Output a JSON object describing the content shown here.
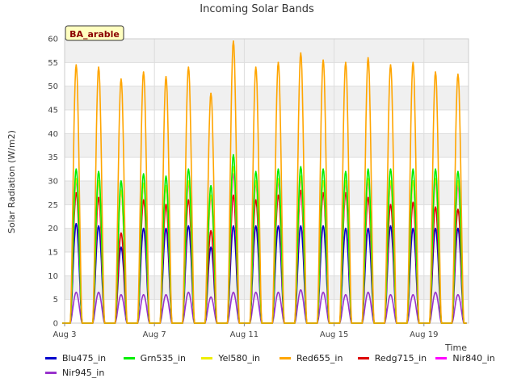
{
  "chart_data": {
    "type": "line",
    "title": "Incoming Solar Bands",
    "xlabel": "Time",
    "ylabel": "Solar Radiation (W/m2)",
    "site_badge": "BA_arable",
    "ylim": [
      0,
      60
    ],
    "yticks": [
      0,
      5,
      10,
      15,
      20,
      25,
      30,
      35,
      40,
      45,
      50,
      55,
      60
    ],
    "xlim": [
      "2023-08-03",
      "2023-08-21"
    ],
    "xticks": [
      {
        "date": "2023-08-03",
        "label": "Aug 3"
      },
      {
        "date": "2023-08-07",
        "label": "Aug 7"
      },
      {
        "date": "2023-08-11",
        "label": "Aug 11"
      },
      {
        "date": "2023-08-15",
        "label": "Aug 15"
      },
      {
        "date": "2023-08-19",
        "label": "Aug 19"
      }
    ],
    "grid": true,
    "background_bands": "alternating light gray",
    "legend_position": "bottom",
    "peak_dates": [
      "2023-08-03",
      "2023-08-04",
      "2023-08-05",
      "2023-08-06",
      "2023-08-07",
      "2023-08-08",
      "2023-08-09",
      "2023-08-10",
      "2023-08-11",
      "2023-08-12",
      "2023-08-13",
      "2023-08-14",
      "2023-08-15",
      "2023-08-16",
      "2023-08-17",
      "2023-08-18",
      "2023-08-19",
      "2023-08-20"
    ],
    "series": [
      {
        "name": "Blu475_in",
        "color": "#0000cc",
        "daily_peaks": [
          21.0,
          20.5,
          16.0,
          20.0,
          20.0,
          20.5,
          16.0,
          20.5,
          20.5,
          20.5,
          20.5,
          20.5,
          20.0,
          20.0,
          20.5,
          20.0,
          20.0,
          20.0
        ]
      },
      {
        "name": "Grn535_in",
        "color": "#00ee00",
        "daily_peaks": [
          32.5,
          32.0,
          30.0,
          31.5,
          31.0,
          32.5,
          29.0,
          35.5,
          32.0,
          32.5,
          33.0,
          32.5,
          32.0,
          32.5,
          32.5,
          32.5,
          32.5,
          32.0
        ]
      },
      {
        "name": "Yel580_in",
        "color": "#eeee00",
        "daily_peaks": [
          30.5,
          30.0,
          28.0,
          29.5,
          29.0,
          30.0,
          27.0,
          33.0,
          30.0,
          30.5,
          31.0,
          30.0,
          30.0,
          30.5,
          30.0,
          30.0,
          30.5,
          30.0
        ]
      },
      {
        "name": "Red655_in",
        "color": "#ffa500",
        "daily_peaks": [
          54.5,
          54.0,
          51.5,
          53.0,
          52.0,
          54.0,
          48.5,
          59.5,
          54.0,
          55.0,
          57.0,
          55.5,
          55.0,
          56.0,
          54.5,
          55.0,
          53.0,
          52.5
        ]
      },
      {
        "name": "Redg715_in",
        "color": "#dd0000",
        "daily_peaks": [
          27.5,
          26.5,
          19.0,
          26.0,
          25.0,
          26.0,
          19.5,
          27.0,
          26.0,
          27.0,
          28.0,
          27.5,
          27.5,
          26.5,
          25.0,
          25.5,
          24.5,
          24.0
        ]
      },
      {
        "name": "Nir840_in",
        "color": "#ff00ff",
        "daily_peaks": [
          30.0,
          30.0,
          28.0,
          29.5,
          29.0,
          29.5,
          26.5,
          31.5,
          29.5,
          30.0,
          30.5,
          30.0,
          29.5,
          30.0,
          29.5,
          30.0,
          30.0,
          29.0
        ]
      },
      {
        "name": "Nir945_in",
        "color": "#9933cc",
        "daily_peaks": [
          6.5,
          6.5,
          6.0,
          6.0,
          6.0,
          6.5,
          5.5,
          6.5,
          6.5,
          6.5,
          7.0,
          6.5,
          6.0,
          6.5,
          6.0,
          6.0,
          6.5,
          6.0
        ]
      }
    ]
  }
}
